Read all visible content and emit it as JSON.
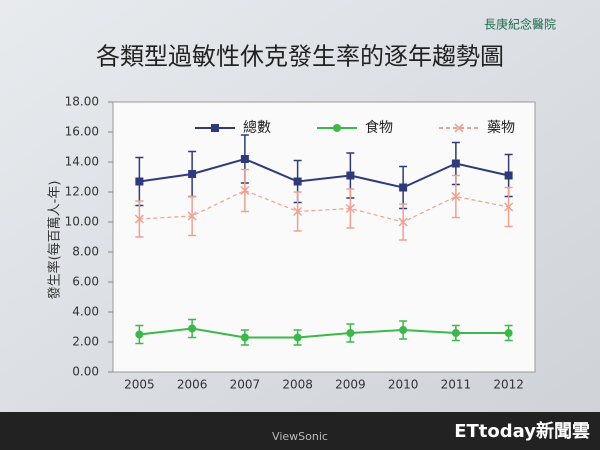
{
  "chart_data": {
    "type": "line",
    "title": "各類型過敏性休克發生率的逐年趨勢圖",
    "y_label": "發生率(每百萬人-年)",
    "categories": [
      "2005",
      "2006",
      "2007",
      "2008",
      "2009",
      "2010",
      "2011",
      "2012"
    ],
    "series": [
      {
        "name": "總數",
        "color": "#2e3a7a",
        "marker": "square",
        "line_style": "solid",
        "values": [
          12.7,
          13.2,
          14.2,
          12.7,
          13.1,
          12.3,
          13.9,
          13.1
        ],
        "errors": [
          1.6,
          1.5,
          1.6,
          1.4,
          1.5,
          1.4,
          1.4,
          1.4
        ]
      },
      {
        "name": "食物",
        "color": "#3cb84a",
        "marker": "circle",
        "line_style": "solid",
        "values": [
          2.5,
          2.9,
          2.3,
          2.3,
          2.6,
          2.8,
          2.6,
          2.6
        ],
        "errors": [
          0.6,
          0.6,
          0.5,
          0.5,
          0.6,
          0.6,
          0.5,
          0.5
        ]
      },
      {
        "name": "藥物",
        "color": "#f0a090",
        "marker": "x",
        "line_style": "dashed",
        "values": [
          10.2,
          10.4,
          12.1,
          10.7,
          10.9,
          10.0,
          11.7,
          11.0
        ],
        "errors": [
          1.2,
          1.3,
          1.4,
          1.3,
          1.3,
          1.2,
          1.4,
          1.3
        ]
      }
    ],
    "ylim": [
      0,
      18
    ],
    "yticks": [
      {
        "value": 0,
        "label": "0.00"
      },
      {
        "value": 2,
        "label": "2.00"
      },
      {
        "value": 4,
        "label": "4.00"
      },
      {
        "value": 6,
        "label": "6.00"
      },
      {
        "value": 8,
        "label": "8.00"
      },
      {
        "value": 10,
        "label": "10.00"
      },
      {
        "value": 12,
        "label": "12.00"
      },
      {
        "value": 14,
        "label": "14.00"
      },
      {
        "value": 16,
        "label": "16.00"
      },
      {
        "value": 18,
        "label": "18.00"
      }
    ],
    "grid": false,
    "legend": "top"
  },
  "logo": "長庚紀念醫院",
  "monitor_brand": "ViewSonic",
  "watermark": "ETtoday新聞雲"
}
